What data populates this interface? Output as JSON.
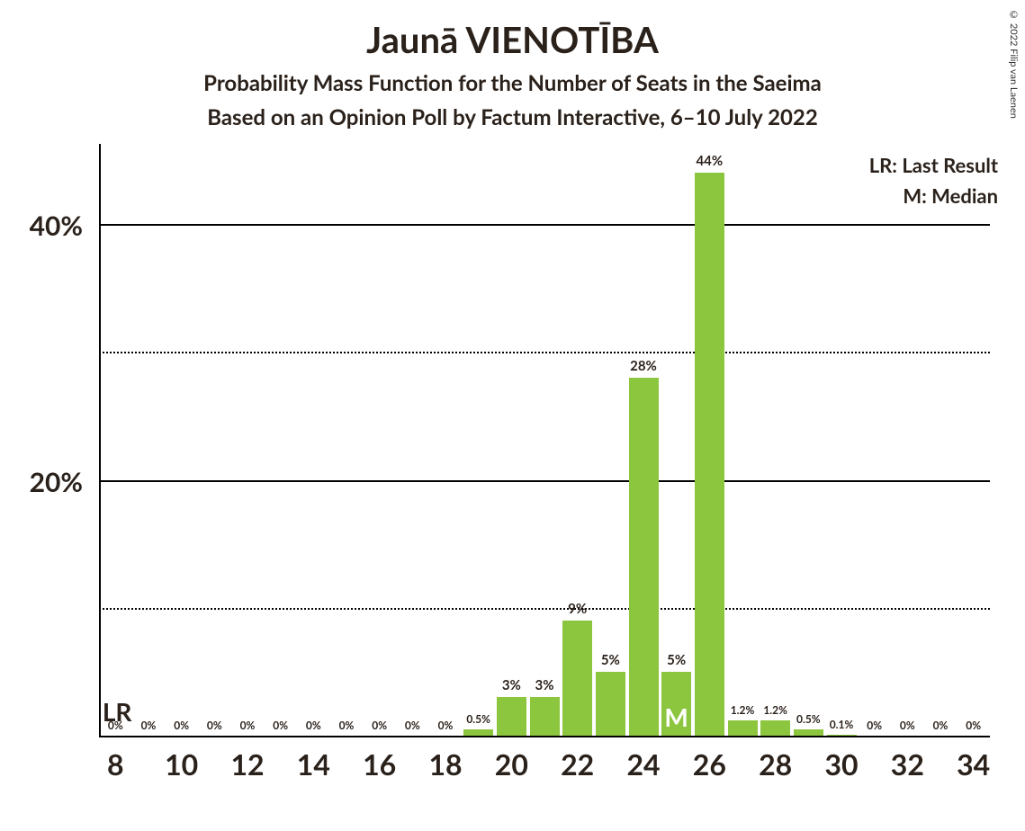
{
  "title": "Jaunā VIENOTĪBA",
  "subtitle1": "Probability Mass Function for the Number of Seats in the Saeima",
  "subtitle2": "Based on an Opinion Poll by Factum Interactive, 6–10 July 2022",
  "copyright": "© 2022 Filip van Laenen",
  "legend_lr": "LR: Last Result",
  "legend_m": "M: Median",
  "lr_label": "LR",
  "median_label": "M",
  "chart": {
    "type": "bar",
    "x_min": 8,
    "x_max": 34,
    "x_tick_step": 2,
    "y_min": 0,
    "y_max": 45,
    "y_ticks": [
      {
        "value": 20,
        "label": "20%",
        "style": "solid"
      },
      {
        "value": 40,
        "label": "40%",
        "style": "solid"
      },
      {
        "value": 10,
        "label": "",
        "style": "dotted"
      },
      {
        "value": 30,
        "label": "",
        "style": "dotted"
      }
    ],
    "bar_color": "#8cc63f",
    "bar_width_ratio": 0.9,
    "label_fontsize_small": 12,
    "label_fontsize_large": 15,
    "background_color": "#ffffff",
    "text_color": "#2a211b",
    "axis_color": "#000000",
    "lr_at": 8,
    "median_at": 25,
    "bars": [
      {
        "x": 8,
        "value": 0,
        "label": "0%"
      },
      {
        "x": 9,
        "value": 0,
        "label": "0%"
      },
      {
        "x": 10,
        "value": 0,
        "label": "0%"
      },
      {
        "x": 11,
        "value": 0,
        "label": "0%"
      },
      {
        "x": 12,
        "value": 0,
        "label": "0%"
      },
      {
        "x": 13,
        "value": 0,
        "label": "0%"
      },
      {
        "x": 14,
        "value": 0,
        "label": "0%"
      },
      {
        "x": 15,
        "value": 0,
        "label": "0%"
      },
      {
        "x": 16,
        "value": 0,
        "label": "0%"
      },
      {
        "x": 17,
        "value": 0,
        "label": "0%"
      },
      {
        "x": 18,
        "value": 0,
        "label": "0%"
      },
      {
        "x": 19,
        "value": 0.5,
        "label": "0.5%"
      },
      {
        "x": 20,
        "value": 3,
        "label": "3%"
      },
      {
        "x": 21,
        "value": 3,
        "label": "3%"
      },
      {
        "x": 22,
        "value": 9,
        "label": "9%"
      },
      {
        "x": 23,
        "value": 5,
        "label": "5%"
      },
      {
        "x": 24,
        "value": 28,
        "label": "28%"
      },
      {
        "x": 25,
        "value": 5,
        "label": "5%"
      },
      {
        "x": 26,
        "value": 44,
        "label": "44%"
      },
      {
        "x": 27,
        "value": 1.2,
        "label": "1.2%"
      },
      {
        "x": 28,
        "value": 1.2,
        "label": "1.2%"
      },
      {
        "x": 29,
        "value": 0.5,
        "label": "0.5%"
      },
      {
        "x": 30,
        "value": 0.1,
        "label": "0.1%"
      },
      {
        "x": 31,
        "value": 0,
        "label": "0%"
      },
      {
        "x": 32,
        "value": 0,
        "label": "0%"
      },
      {
        "x": 33,
        "value": 0,
        "label": "0%"
      },
      {
        "x": 34,
        "value": 0,
        "label": "0%"
      }
    ]
  }
}
